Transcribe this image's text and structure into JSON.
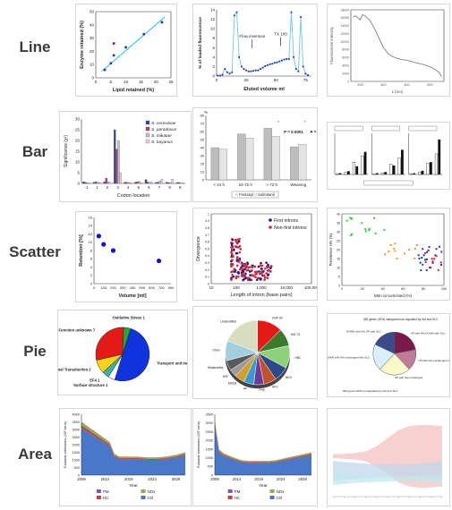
{
  "row_labels": [
    "Line",
    "Bar",
    "Scatter",
    "Pie",
    "Area"
  ],
  "chart_data": [
    {
      "id": "line_a",
      "type": "scatter",
      "xlabel": "Lipid retained (%)",
      "ylabel": "Enzyme retained (%)",
      "xlim": [
        0,
        25
      ],
      "ylim": [
        0,
        50
      ],
      "xticks": [
        0,
        5,
        10,
        15,
        20,
        25
      ],
      "yticks": [
        0,
        10,
        20,
        30,
        40,
        50
      ],
      "x": [
        3,
        5,
        6,
        6,
        10,
        16,
        22
      ],
      "y": [
        6,
        11,
        17,
        26,
        23,
        33,
        42
      ],
      "fit": [
        [
          2,
          5
        ],
        [
          23,
          46
        ]
      ],
      "colors": {
        "points": "#2233cc",
        "fit": "#19c6e6"
      }
    },
    {
      "id": "line_b",
      "type": "line",
      "xlabel": "Eluted volume ml",
      "ylabel": "% of loaded fluorescence",
      "xlim": [
        0,
        80
      ],
      "ylim": [
        0,
        14
      ],
      "xticks": [
        0,
        25,
        50,
        75
      ],
      "yticks": [
        0,
        2,
        4,
        6,
        8,
        10,
        12,
        14
      ],
      "annotations": [
        {
          "text": "Flow inversion",
          "x": 30,
          "y": 7
        },
        {
          "text": "TX 100",
          "x": 54,
          "y": 7.5
        }
      ],
      "series": [
        {
          "x": [
            1,
            3,
            5,
            7,
            9,
            11,
            13,
            15,
            17,
            19,
            21,
            23,
            25,
            27,
            29,
            31,
            33,
            35,
            37,
            39,
            41,
            43,
            45,
            47,
            49,
            51,
            53,
            55,
            57,
            59,
            61,
            63,
            65,
            67,
            69,
            71,
            73,
            75,
            77
          ],
          "y": [
            0.1,
            0.1,
            0.3,
            1.5,
            0.8,
            0.5,
            0.8,
            12.8,
            13.5,
            4,
            2,
            1.5,
            1.2,
            1,
            1,
            1.1,
            1.2,
            1.2,
            1.5,
            1.8,
            2.1,
            2.3,
            2.5,
            2.6,
            2.8,
            2.9,
            3.1,
            3.3,
            3.5,
            3.6,
            3.6,
            13.5,
            4,
            1.5,
            1,
            12.5,
            2,
            0.5,
            0.2
          ]
        }
      ],
      "colors": {
        "line": "#6ec6e6",
        "points": "#1f2fbf"
      }
    },
    {
      "id": "line_c",
      "type": "line",
      "xlabel": "L (nm)",
      "ylabel": "Fluorescence intensity",
      "xlim": [
        160,
        560
      ],
      "ylim": [
        0,
        18000
      ],
      "xticks": [
        200,
        300,
        400,
        500
      ],
      "yticks": [
        0,
        2000,
        4000,
        6000,
        8000,
        10000,
        12000,
        14000,
        16000,
        18000
      ],
      "series": [
        {
          "x": [
            170,
            180,
            190,
            200,
            210,
            220,
            240,
            260,
            280,
            300,
            320,
            340,
            360,
            380,
            400,
            420,
            440,
            460,
            480,
            500,
            520,
            540,
            550
          ],
          "y": [
            16200,
            16500,
            16000,
            15500,
            16800,
            16500,
            15500,
            13500,
            11000,
            8500,
            7000,
            6200,
            5800,
            5500,
            5300,
            5000,
            4700,
            4400,
            4100,
            3700,
            3100,
            2200,
            1200
          ]
        }
      ],
      "colors": {
        "line": "#707070"
      }
    },
    {
      "id": "bar_a",
      "type": "bar",
      "xlabel": "Codon location",
      "ylabel": "Significance (χ²)",
      "categories": [
        "-1",
        "1",
        "2",
        "3",
        "4",
        "5",
        "6",
        "7",
        "8",
        "9"
      ],
      "ylim": [
        0,
        30
      ],
      "yticks": [
        0,
        5,
        10,
        15,
        20,
        25,
        30
      ],
      "series": [
        {
          "name": "S. cerevisiae",
          "color": "#2b4ba3",
          "values": [
            0.8,
            0.5,
            0.8,
            25,
            0.6,
            0.6,
            1.8,
            0.5,
            0.6,
            0.4
          ]
        },
        {
          "name": "S. paradoxus",
          "color": "#b03a7a",
          "values": [
            0.5,
            0.8,
            2.5,
            16,
            0.5,
            0.8,
            0.6,
            0.6,
            0.4,
            0.5
          ]
        },
        {
          "name": "S. mikatae",
          "color": "#bdbdbd",
          "values": [
            0.3,
            0.6,
            0.8,
            20,
            0.5,
            1.0,
            0.5,
            1.2,
            0.4,
            0.2
          ]
        },
        {
          "name": "S. bayanus",
          "color": "#f2c7dc",
          "values": [
            0.2,
            0.3,
            0.5,
            5,
            0.3,
            0.4,
            0.6,
            2.0,
            2.0,
            0.3
          ]
        }
      ]
    },
    {
      "id": "bar_b",
      "type": "bar",
      "xlabel": "",
      "ylabel": "%",
      "categories": [
        "< 24 h",
        "24-72 h",
        "> 72 h",
        "Weaning"
      ],
      "ylim": [
        0,
        80
      ],
      "yticks": [
        0,
        10,
        20,
        30,
        40,
        50,
        60,
        70,
        80
      ],
      "series": [
        {
          "name": "Fentanyl",
          "color": "#bdbdbd",
          "values": [
            40,
            57,
            64,
            41
          ]
        },
        {
          "name": "Sufentanil",
          "color": "#e4e4e4",
          "values": [
            38,
            52,
            54,
            44
          ]
        }
      ],
      "annotations": [
        {
          "text": "*",
          "category": "> 72 h"
        },
        {
          "text": "P = 0.0001",
          "category": "> 72 h"
        },
        {
          "text": "*",
          "category": "Weaning"
        },
        {
          "text": "P = 0.0002",
          "category": "Weaning"
        }
      ],
      "legend_label": "□ Fentanyl □ Sufentanil"
    },
    {
      "id": "bar_c",
      "type": "bar",
      "xlabel": "",
      "ylabel": "",
      "panels": [
        {
          "values_white": [
            2,
            5,
            30,
            45
          ],
          "values_black": [
            3,
            8,
            20,
            55
          ]
        },
        {
          "values_white": [
            2,
            4,
            25,
            40
          ],
          "values_black": [
            3,
            6,
            22,
            60
          ]
        },
        {
          "values_white": [
            2,
            6,
            28,
            50
          ],
          "values_black": [
            3,
            9,
            30,
            85
          ]
        }
      ],
      "colors": {
        "white": "#ffffff",
        "black": "#111111"
      }
    },
    {
      "id": "scatter_a",
      "type": "scatter",
      "xlabel": "Volume [ml]",
      "ylabel": "Retention [%]",
      "xlim": [
        0,
        800
      ],
      "ylim": [
        0,
        16
      ],
      "xticks": [
        0,
        100,
        200,
        300,
        400,
        500,
        600,
        700,
        800
      ],
      "yticks": [
        0,
        2,
        4,
        6,
        8,
        10,
        12,
        14,
        16
      ],
      "x": [
        50,
        100,
        200,
        675
      ],
      "y": [
        11.5,
        9.5,
        8,
        5.5
      ],
      "colors": {
        "points": "#1111dd"
      }
    },
    {
      "id": "scatter_b",
      "type": "scatter",
      "xlabel": "Length of intron (base-pairs)",
      "ylabel": "Divergence",
      "xscale": "log",
      "xlim": [
        10,
        100000
      ],
      "ylim": [
        0,
        1
      ],
      "xticks": [
        "10",
        "100",
        "1,000",
        "10,000",
        "100,000"
      ],
      "yticks": [
        0,
        0.1,
        0.2,
        0.3,
        0.4,
        0.5,
        0.6,
        0.7,
        0.8,
        0.9,
        1.0
      ],
      "series": [
        {
          "name": "First introns",
          "color": "#1a1a8c"
        },
        {
          "name": "Non-first introns",
          "color": "#d02a3a"
        }
      ]
    },
    {
      "id": "scatter_c",
      "type": "scatter",
      "xlabel": "Men circumcised (%)",
      "ylabel": "Prevalence HIV (%)",
      "xlim": [
        0,
        100
      ],
      "ylim": [
        0,
        40
      ],
      "xticks": [
        0,
        20,
        40,
        60,
        80,
        100
      ],
      "yticks": [
        0,
        5,
        10,
        15,
        20,
        25,
        30,
        35,
        40
      ],
      "colors": {
        "green": "#33cc33",
        "orange": "#ff8c1a",
        "blue": "#1a3acc",
        "red": "#e62020"
      }
    },
    {
      "id": "pie_a",
      "type": "pie",
      "slices": [
        {
          "label": "Transport and metabolism 12",
          "value": 12,
          "color": "#1133dd"
        },
        {
          "label": "Surface structure 1",
          "value": 1,
          "color": "#ffffff"
        },
        {
          "label": "EF4 1",
          "value": 1,
          "color": "#3cb0a4"
        },
        {
          "label": "Regulators, Signal Transduction 2",
          "value": 2,
          "color": "#ffd21a"
        },
        {
          "label": "Function unknown 7",
          "value": 7,
          "color": "#e61919"
        },
        {
          "label": "Oxidative Stress 1",
          "value": 1,
          "color": "#22aa33"
        }
      ]
    },
    {
      "id": "pie_b",
      "type": "pie",
      "slices": [
        {
          "label": "HSP 90",
          "value": 10,
          "color": "#e61919"
        },
        {
          "label": "HKI 73",
          "value": 7,
          "color": "#3a7a2a"
        },
        {
          "label": "HBC",
          "value": 9,
          "color": "#8fd07a"
        },
        {
          "label": "NKS",
          "value": 6,
          "color": "#2a4a8a"
        },
        {
          "label": "AF2",
          "value": 5,
          "color": "#c0522a"
        },
        {
          "label": "PHE",
          "value": 4,
          "color": "#6b3a9a"
        },
        {
          "label": "AF",
          "value": 4,
          "color": "#3a9ad0"
        },
        {
          "label": "DREB",
          "value": 4,
          "color": "#d0a02a"
        },
        {
          "label": "HSF",
          "value": 3,
          "color": "#9a9a9a"
        },
        {
          "label": "Metabolites",
          "value": 4,
          "color": "#5a5a5a"
        },
        {
          "label": "Other",
          "value": 8,
          "color": "#a0d0e0"
        },
        {
          "label": "Unidentified",
          "value": 15,
          "color": "#d8ddc0"
        }
      ]
    },
    {
      "id": "pie_c",
      "type": "pie",
      "title": "383 genes (30%) categorized as regulated by IAA and SLC",
      "footer": "383 genes (30%) unregulated by IAA and SLC",
      "slices": [
        {
          "label": "UP with IAA DOWN with SLC",
          "value": 22,
          "color": "#7a1a4a"
        },
        {
          "label": "UP with IAA unchanged with SLC",
          "value": 16,
          "color": "#c27a9a"
        },
        {
          "label": "UP with IAA unchanged",
          "value": 24,
          "color": "#fafac8"
        },
        {
          "label": "DOWN with IAA unchanged with SLC",
          "value": 20,
          "color": "#d8f0fa"
        },
        {
          "label": "DOWN with IAA UP with SLC",
          "value": 18,
          "color": "#3a4a8a"
        }
      ]
    },
    {
      "id": "area_a",
      "type": "area",
      "xlabel": "Year",
      "ylabel": "Exhaust emissions (10⁶ tons)",
      "xlim": [
        2009,
        2031
      ],
      "xticks": [
        2009,
        2014,
        2019,
        2024,
        2029
      ],
      "ylim": [
        0,
        4000
      ],
      "yticks": [
        0,
        500,
        1000,
        1500,
        2000,
        2500,
        3000,
        3500,
        4000
      ],
      "x": [
        2009,
        2011,
        2013,
        2015,
        2016,
        2017,
        2019,
        2021,
        2023,
        2025,
        2027,
        2029,
        2031
      ],
      "series": [
        {
          "name": "CO",
          "color": "#4a78c8",
          "values": [
            3100,
            2700,
            2300,
            1900,
            1200,
            1050,
            1050,
            1050,
            1000,
            1000,
            1050,
            1150,
            1300
          ]
        },
        {
          "name": "HC",
          "color": "#c94040",
          "values": [
            180,
            160,
            140,
            120,
            90,
            80,
            80,
            75,
            70,
            70,
            75,
            80,
            90
          ]
        },
        {
          "name": "NOx",
          "color": "#8ab04a",
          "values": [
            200,
            180,
            160,
            140,
            100,
            90,
            85,
            80,
            80,
            80,
            85,
            90,
            100
          ]
        },
        {
          "name": "PM",
          "color": "#7a5aa8",
          "values": [
            20,
            18,
            16,
            14,
            10,
            9,
            9,
            8,
            8,
            8,
            9,
            10,
            10
          ]
        }
      ]
    },
    {
      "id": "area_b",
      "type": "area",
      "xlabel": "Year",
      "ylabel": "Exhaust emissions (10⁶ tons)",
      "xlim": [
        2009,
        2031
      ],
      "xticks": [
        2009,
        2014,
        2019,
        2024,
        2029
      ],
      "ylim": [
        0,
        3500
      ],
      "yticks": [
        0,
        500,
        1000,
        1500,
        2000,
        2500,
        3000,
        3500
      ],
      "x": [
        2009,
        2010,
        2011,
        2013,
        2015,
        2017,
        2019,
        2021,
        2023,
        2025,
        2027,
        2029,
        2031
      ],
      "series": [
        {
          "name": "CO",
          "color": "#4a78c8",
          "values": [
            2800,
            1300,
            1100,
            900,
            750,
            700,
            700,
            700,
            750,
            850,
            950,
            1050,
            1150
          ]
        },
        {
          "name": "HC",
          "color": "#c94040",
          "values": [
            150,
            80,
            70,
            60,
            50,
            45,
            45,
            45,
            50,
            55,
            60,
            65,
            70
          ]
        },
        {
          "name": "NOx",
          "color": "#8ab04a",
          "values": [
            180,
            90,
            80,
            70,
            60,
            55,
            55,
            55,
            60,
            65,
            70,
            75,
            80
          ]
        },
        {
          "name": "PM",
          "color": "#7a5aa8",
          "values": [
            20,
            10,
            9,
            8,
            7,
            6,
            6,
            6,
            7,
            7,
            8,
            8,
            9
          ]
        }
      ]
    },
    {
      "id": "area_c",
      "type": "area",
      "xlim": [
        0,
        10
      ],
      "ylim": [
        0,
        10
      ],
      "x": [
        0,
        1,
        2,
        3,
        4,
        5,
        6,
        7,
        8,
        9,
        10
      ],
      "series": [
        {
          "color": "#f4c0c0",
          "values": [
            0.5,
            0.6,
            0.8,
            1.2,
            2.5,
            4.5,
            6.5,
            7.5,
            7.8,
            7.7,
            7.5
          ]
        },
        {
          "color": "#c0d8ec",
          "values": [
            2.5,
            2.2,
            2.0,
            1.8,
            1.7,
            1.6,
            1.5,
            1.6,
            1.8,
            2.0,
            2.2
          ]
        },
        {
          "color": "#c0e8ec",
          "values": [
            1.5,
            1.3,
            1.0,
            0.9,
            0.8,
            0.7,
            0.6,
            0.6,
            0.7,
            0.8,
            1.0
          ]
        }
      ]
    }
  ]
}
